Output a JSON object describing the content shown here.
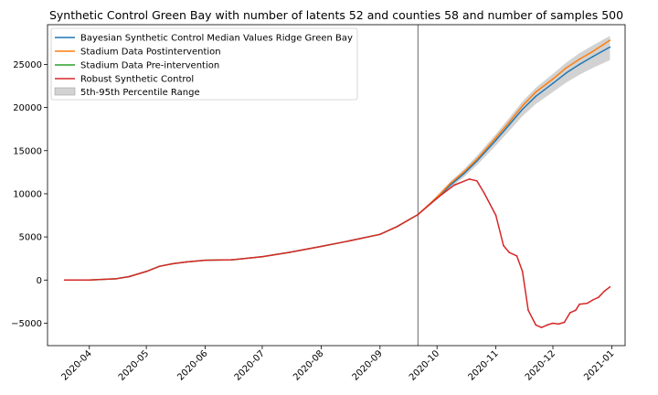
{
  "chart_data": {
    "type": "line",
    "title": "Synthetic Control Green Bay with number of latents 52 and counties 58 and number of samples 500",
    "xlabel": "",
    "ylabel": "",
    "xlim": [
      "2020-03-10",
      "2021-01-08"
    ],
    "ylim": [
      -7600,
      29600
    ],
    "grid": false,
    "legend_position": "upper-left",
    "x_ticks": [
      "2020-04",
      "2020-05",
      "2020-06",
      "2020-07",
      "2020-08",
      "2020-09",
      "2020-10",
      "2020-11",
      "2020-12",
      "2021-01"
    ],
    "y_ticks": [
      -5000,
      0,
      5000,
      10000,
      15000,
      20000,
      25000
    ],
    "intervention_date": "2020-09-21",
    "colors": {
      "bayesian": "#1f77b4",
      "stadium_post": "#ff7f0e",
      "stadium_pre": "#2ca02c",
      "robust": "#d62728",
      "band": "#bfbfbf",
      "vline": "#808080"
    },
    "pre_intervention": {
      "dates": [
        "2020-03-19",
        "2020-04-01",
        "2020-04-15",
        "2020-04-22",
        "2020-05-01",
        "2020-05-08",
        "2020-05-15",
        "2020-05-22",
        "2020-06-01",
        "2020-06-15",
        "2020-07-01",
        "2020-07-15",
        "2020-08-01",
        "2020-08-15",
        "2020-09-01",
        "2020-09-10",
        "2020-09-21"
      ],
      "values": [
        0,
        0,
        150,
        400,
        1000,
        1600,
        1900,
        2100,
        2300,
        2350,
        2700,
        3200,
        3900,
        4500,
        5300,
        6200,
        7600
      ]
    },
    "series": [
      {
        "name": "Bayesian Synthetic Control Median Values Ridge Green Bay",
        "x": [
          "2020-09-21",
          "2020-10-01",
          "2020-10-08",
          "2020-10-15",
          "2020-10-22",
          "2020-11-01",
          "2020-11-08",
          "2020-11-15",
          "2020-11-22",
          "2020-12-01",
          "2020-12-08",
          "2020-12-15",
          "2020-12-22",
          "2020-12-31"
        ],
        "y": [
          7600,
          9500,
          11000,
          12300,
          13800,
          16200,
          18000,
          19800,
          21300,
          22800,
          24000,
          25000,
          25900,
          27000
        ]
      },
      {
        "name": "Stadium Data Postintervention",
        "x": [
          "2020-09-21",
          "2020-10-01",
          "2020-10-08",
          "2020-10-15",
          "2020-10-22",
          "2020-11-01",
          "2020-11-08",
          "2020-11-15",
          "2020-11-22",
          "2020-12-01",
          "2020-12-08",
          "2020-12-15",
          "2020-12-22",
          "2020-12-31"
        ],
        "y": [
          7600,
          9600,
          11200,
          12500,
          14000,
          16500,
          18300,
          20200,
          21800,
          23300,
          24600,
          25600,
          26500,
          27800
        ]
      },
      {
        "name": "Stadium Data Pre-intervention",
        "x": [
          "2020-03-19",
          "2020-04-01",
          "2020-04-15",
          "2020-04-22",
          "2020-05-01",
          "2020-05-08",
          "2020-05-15",
          "2020-05-22",
          "2020-06-01",
          "2020-06-15",
          "2020-07-01",
          "2020-07-15",
          "2020-08-01",
          "2020-08-15",
          "2020-09-01",
          "2020-09-10",
          "2020-09-21"
        ],
        "y": [
          0,
          0,
          150,
          400,
          1000,
          1600,
          1900,
          2100,
          2300,
          2350,
          2700,
          3200,
          3900,
          4500,
          5300,
          6200,
          7600
        ]
      },
      {
        "name": "Robust Synthetic Control",
        "x": [
          "2020-03-19",
          "2020-04-01",
          "2020-04-15",
          "2020-04-22",
          "2020-05-01",
          "2020-05-08",
          "2020-05-15",
          "2020-05-22",
          "2020-06-01",
          "2020-06-15",
          "2020-07-01",
          "2020-07-15",
          "2020-08-01",
          "2020-08-15",
          "2020-09-01",
          "2020-09-10",
          "2020-09-21",
          "2020-10-01",
          "2020-10-10",
          "2020-10-18",
          "2020-10-22",
          "2020-10-26",
          "2020-11-01",
          "2020-11-05",
          "2020-11-08",
          "2020-11-12",
          "2020-11-15",
          "2020-11-18",
          "2020-11-22",
          "2020-11-25",
          "2020-11-28",
          "2020-12-01",
          "2020-12-04",
          "2020-12-07",
          "2020-12-10",
          "2020-12-13",
          "2020-12-15",
          "2020-12-19",
          "2020-12-22",
          "2020-12-25",
          "2020-12-28",
          "2020-12-31"
        ],
        "y": [
          0,
          0,
          150,
          400,
          1000,
          1600,
          1900,
          2100,
          2300,
          2350,
          2700,
          3200,
          3900,
          4500,
          5300,
          6200,
          7600,
          9500,
          11000,
          11700,
          11500,
          10000,
          7500,
          4000,
          3200,
          2800,
          1000,
          -3500,
          -5200,
          -5500,
          -5200,
          -5000,
          -5100,
          -4900,
          -3800,
          -3500,
          -2800,
          -2700,
          -2300,
          -2000,
          -1300,
          -800
        ]
      }
    ],
    "band": {
      "name": "5th-95th Percentile Range",
      "x": [
        "2020-09-21",
        "2020-10-01",
        "2020-10-08",
        "2020-10-15",
        "2020-10-22",
        "2020-11-01",
        "2020-11-08",
        "2020-11-15",
        "2020-11-22",
        "2020-12-01",
        "2020-12-08",
        "2020-12-15",
        "2020-12-22",
        "2020-12-31"
      ],
      "lower": [
        7600,
        9300,
        10700,
        11900,
        13300,
        15600,
        17300,
        19000,
        20400,
        21800,
        22900,
        23800,
        24600,
        25500
      ],
      "upper": [
        7600,
        9800,
        11400,
        12800,
        14400,
        16900,
        18800,
        20700,
        22300,
        23900,
        25200,
        26300,
        27200,
        28300
      ]
    }
  }
}
